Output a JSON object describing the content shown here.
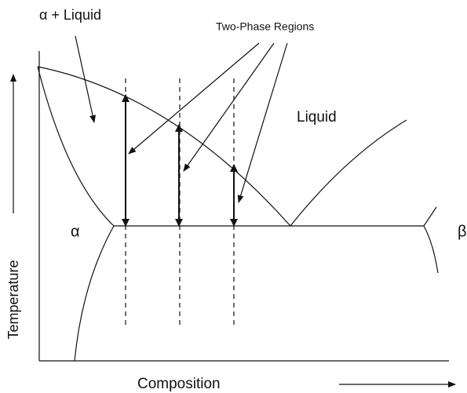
{
  "labels": {
    "alpha_liquid": "α + Liquid",
    "two_phase": "Two-Phase Regions",
    "liquid": "Liquid",
    "alpha": "α",
    "beta": "β",
    "y_axis": "Temperature",
    "x_axis": "Composition"
  }
}
